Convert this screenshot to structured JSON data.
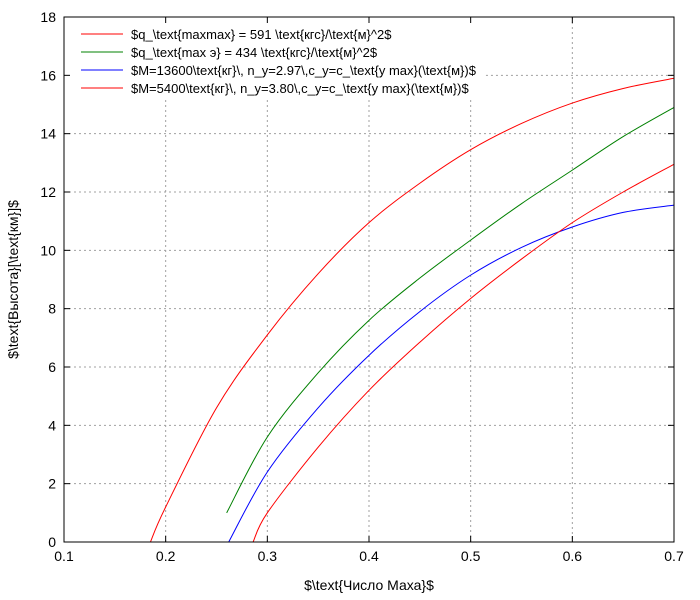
{
  "chart_data": {
    "type": "line",
    "title": "",
    "xlabel": "$\\text{Число Маха}$",
    "ylabel": "$\\text{Высота}[\\text{км}]$",
    "xlim": [
      0.1,
      0.7
    ],
    "ylim": [
      0,
      18
    ],
    "xticks": [
      "0.1",
      "0.2",
      "0.3",
      "0.4",
      "0.5",
      "0.6",
      "0.7"
    ],
    "yticks": [
      "0",
      "2",
      "4",
      "6",
      "8",
      "10",
      "12",
      "14",
      "16",
      "18"
    ],
    "grid": true,
    "legend_position": "top-left",
    "series": [
      {
        "name": "$q_\\text{maxmax} = 591 \\text{кгс}/\\text{м}^2$",
        "color": "#ff0000",
        "x": [
          0.185,
          0.2,
          0.25,
          0.3,
          0.35,
          0.4,
          0.45,
          0.5,
          0.55,
          0.6,
          0.65,
          0.7
        ],
        "y": [
          0,
          1.2,
          4.6,
          7.1,
          9.2,
          10.95,
          12.3,
          13.45,
          14.35,
          15.05,
          15.55,
          15.9
        ]
      },
      {
        "name": "$q_\\text{max э} = 434 \\text{кгс}/\\text{м}^2$",
        "color": "#008000",
        "x": [
          0.26,
          0.3,
          0.35,
          0.4,
          0.45,
          0.5,
          0.55,
          0.6,
          0.65,
          0.7
        ],
        "y": [
          1.0,
          3.6,
          5.8,
          7.6,
          9.05,
          10.35,
          11.6,
          12.75,
          13.9,
          14.9
        ]
      },
      {
        "name": "$M=13600\\text{кг}\\, n_y=2.97\\,c_y=c_\\text{y max}(\\text{м})$",
        "color": "#0000ff",
        "x": [
          0.262,
          0.3,
          0.35,
          0.4,
          0.45,
          0.5,
          0.55,
          0.6,
          0.65,
          0.7
        ],
        "y": [
          0,
          2.4,
          4.6,
          6.4,
          7.9,
          9.15,
          10.1,
          10.8,
          11.3,
          11.55
        ]
      },
      {
        "name": "$M=5400\\text{кг}\\, n_y=3.80\\,c_y=c_\\text{y max}(\\text{м})$",
        "color": "#ff0000",
        "x": [
          0.286,
          0.3,
          0.35,
          0.4,
          0.45,
          0.5,
          0.55,
          0.6,
          0.65,
          0.7
        ],
        "y": [
          0,
          1.0,
          3.25,
          5.2,
          6.85,
          8.35,
          9.7,
          10.95,
          12.0,
          12.95
        ]
      }
    ]
  }
}
